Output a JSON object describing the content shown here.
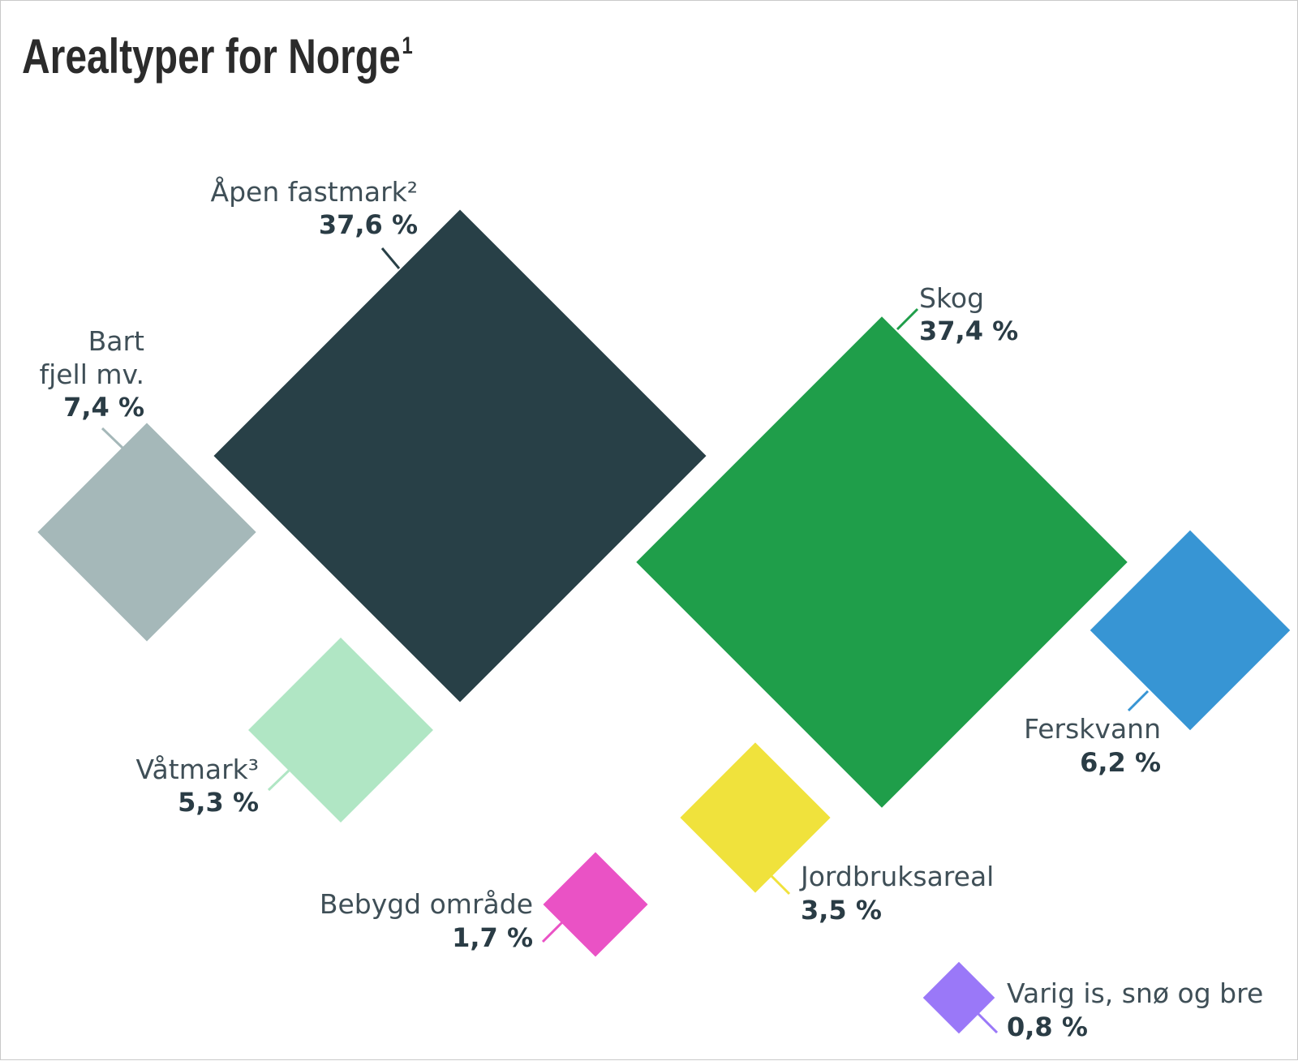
{
  "title": "Arealtyper for Norge",
  "title_note": "1",
  "chart_data": {
    "type": "diamond-area",
    "title": "Arealtyper for Norge",
    "unit": "%",
    "categories": [
      {
        "id": "apen",
        "name": "Åpen fastmark²",
        "value": 37.6,
        "label": "37,6 %",
        "color": "#284047"
      },
      {
        "id": "skog",
        "name": "Skog",
        "value": 37.4,
        "label": "37,4 %",
        "color": "#1f9e4a"
      },
      {
        "id": "bart",
        "name": "Bart fjell mv.",
        "value": 7.4,
        "label": "7,4 %",
        "color": "#a5b8b9"
      },
      {
        "id": "ferskvann",
        "name": "Ferskvann",
        "value": 6.2,
        "label": "6,2 %",
        "color": "#3795d4"
      },
      {
        "id": "vatmark",
        "name": "Våtmark³",
        "value": 5.3,
        "label": "5,3 %",
        "color": "#b0e6c4"
      },
      {
        "id": "jordbruk",
        "name": "Jordbruksareal",
        "value": 3.5,
        "label": "3,5 %",
        "color": "#f0e23c"
      },
      {
        "id": "bebygd",
        "name": "Bebygd område",
        "value": 1.7,
        "label": "1,7 %",
        "color": "#ea52c5"
      },
      {
        "id": "varig",
        "name": "Varig is, snø og bre",
        "value": 0.8,
        "label": "0,8 %",
        "color": "#9a78f8"
      }
    ]
  }
}
